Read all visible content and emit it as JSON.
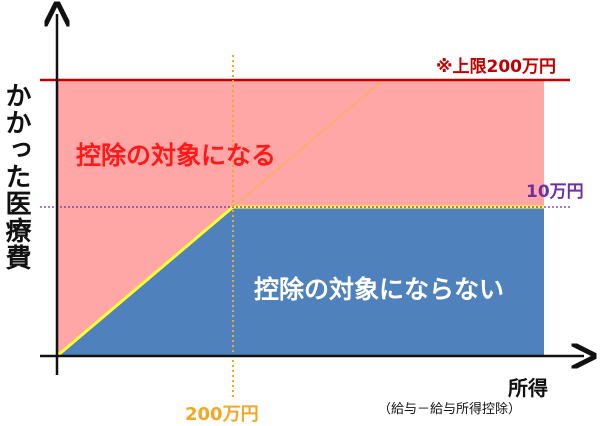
{
  "diagram": {
    "y_axis_label": "かかった医療費",
    "x_axis_label": "所得",
    "x_axis_note": "（給与－給与所得控除）",
    "region_deductible_label": "控除の対象になる",
    "region_nondeductible_label": "控除の対象にならない",
    "cap_label": "※上限200万円",
    "threshold_label": "10万円",
    "x_threshold_label": "200万円",
    "colors": {
      "deductible_region": "#ffa6a6",
      "nondeductible_region": "#4f81bd",
      "cap_line": "#c00000",
      "threshold_line": "#7030a0",
      "x_threshold_line": "#f5a623",
      "boundary_line": "#ffff33",
      "diagonal_extension": "#ffb050",
      "axes": "#111111"
    }
  }
}
